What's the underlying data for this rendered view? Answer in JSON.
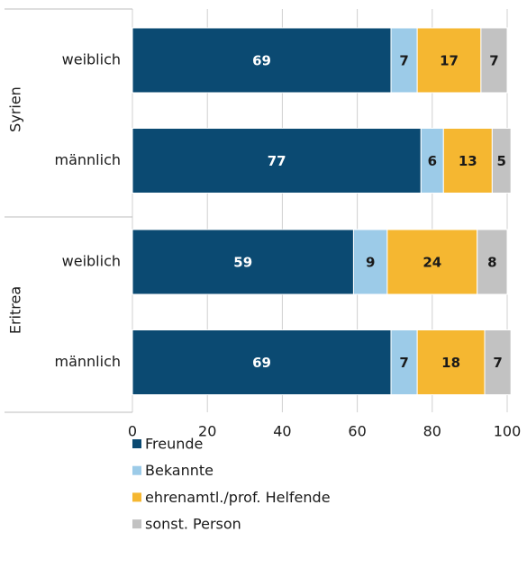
{
  "chart_data": {
    "type": "stacked-barh",
    "groups": [
      {
        "name": "Syrien",
        "categories": [
          "weiblich",
          "männlich"
        ]
      },
      {
        "name": "Eritrea",
        "categories": [
          "weiblich",
          "männlich"
        ]
      }
    ],
    "series": [
      {
        "name": "Freunde",
        "color": "#0b4a72",
        "label_color": "#ffffff",
        "values": [
          69,
          77,
          59,
          69
        ]
      },
      {
        "name": "Bekannte",
        "color": "#9ccbe8",
        "label_color": "#1a1a1a",
        "values": [
          7,
          6,
          9,
          7
        ]
      },
      {
        "name": "ehrenamtl./prof. Helfende",
        "color": "#f5b731",
        "label_color": "#1a1a1a",
        "values": [
          17,
          13,
          24,
          18
        ]
      },
      {
        "name": "sonst. Person",
        "color": "#c2c2c2",
        "label_color": "#1a1a1a",
        "values": [
          7,
          5,
          8,
          7
        ]
      }
    ],
    "xlim": [
      0,
      100
    ],
    "xticks": [
      0,
      20,
      40,
      60,
      80,
      100
    ],
    "grid": true
  }
}
